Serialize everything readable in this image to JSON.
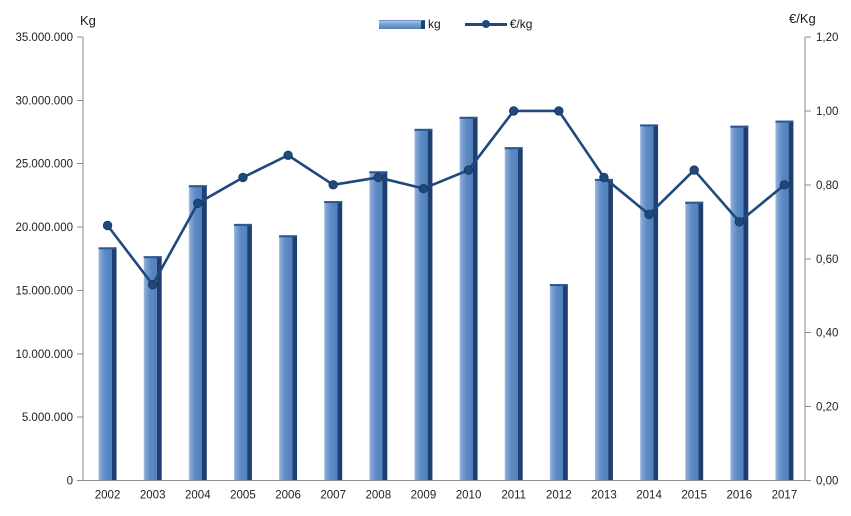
{
  "chart": {
    "left_axis_title": "Kg",
    "right_axis_title": "€/Kg",
    "legend": {
      "bar_label": "kg",
      "line_label": "€/kg"
    }
  },
  "colors": {
    "bar_body_light": "#aac3e4",
    "bar_body_mid": "#6d97cc",
    "bar_body_main": "#4f81bd",
    "bar_dark_edge": "#1e3f72",
    "bar_top_cap": "#2c5791",
    "line": "#1f497d",
    "axis_line": "#8c8c8c",
    "text": "#1f1f1f"
  },
  "chart_data": {
    "type": "bar+line combo, dual axis",
    "title": "",
    "categories": [
      "2002",
      "2003",
      "2004",
      "2005",
      "2006",
      "2007",
      "2008",
      "2009",
      "2010",
      "2011",
      "2012",
      "2013",
      "2014",
      "2015",
      "2016",
      "2017"
    ],
    "series": [
      {
        "name": "kg",
        "type": "bar",
        "axis": "left",
        "values": [
          18400000,
          17700000,
          23300000,
          20250000,
          19350000,
          22050000,
          24400000,
          27750000,
          28700000,
          26300000,
          15500000,
          23800000,
          28100000,
          22000000,
          28000000,
          28400000
        ]
      },
      {
        "name": "€/kg",
        "type": "line",
        "axis": "right",
        "values": [
          0.69,
          0.53,
          0.75,
          0.82,
          0.88,
          0.8,
          0.82,
          0.79,
          0.84,
          1.0,
          1.0,
          0.82,
          0.72,
          0.84,
          0.7,
          0.8
        ]
      }
    ],
    "left_axis": {
      "title": "Kg",
      "min": 0,
      "max": 35000000,
      "step": 5000000,
      "tick_labels": [
        "0",
        "5.000.000",
        "10.000.000",
        "15.000.000",
        "20.000.000",
        "25.000.000",
        "30.000.000",
        "35.000.000"
      ]
    },
    "right_axis": {
      "title": "€/Kg",
      "min": 0,
      "max": 1.2,
      "step": 0.2,
      "tick_labels": [
        "0,00",
        "0,20",
        "0,40",
        "0,60",
        "0,80",
        "1,00",
        "1,20"
      ]
    },
    "grid": false,
    "legend_position": "top-center"
  }
}
